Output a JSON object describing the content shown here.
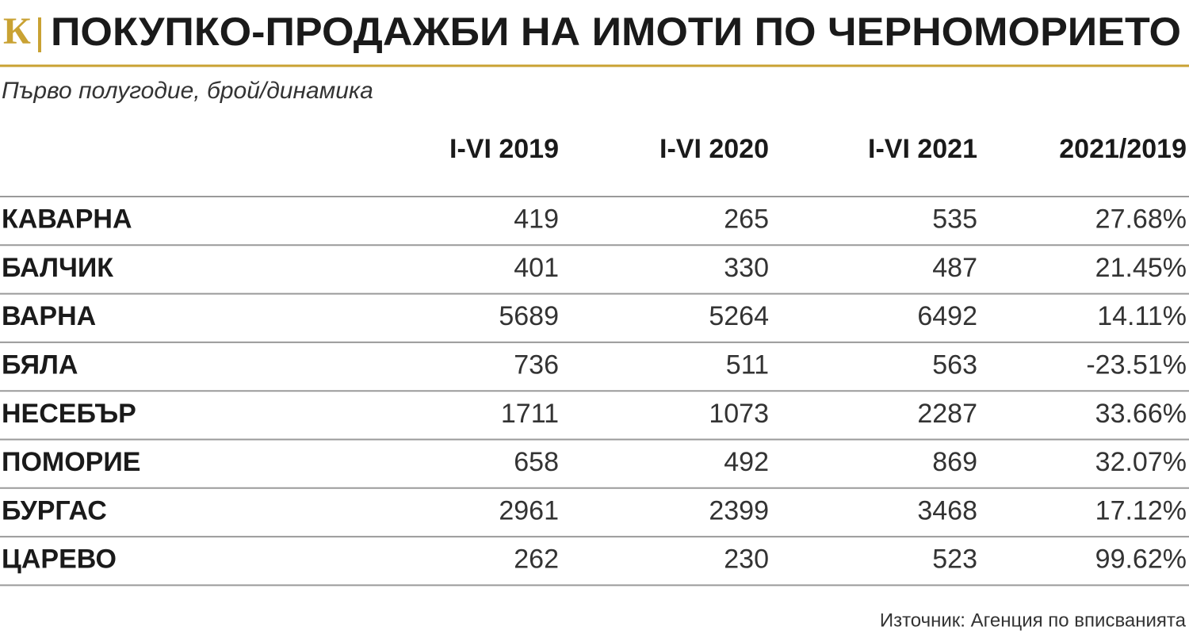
{
  "header": {
    "logo": "К",
    "title": "ПОКУПКО-ПРОДАЖБИ НА ИМОТИ ПО ЧЕРНОМОРИЕТО",
    "subtitle": "Първо полугодие, брой/динамика"
  },
  "table": {
    "columns": [
      "I-VI 2019",
      "I-VI 2020",
      "I-VI 2021",
      "2021/2019"
    ],
    "rows": [
      [
        "КАВАРНА",
        419,
        265,
        535,
        "27.68%"
      ],
      [
        "БАЛЧИК",
        401,
        330,
        487,
        "21.45%"
      ],
      [
        "ВАРНА",
        5689,
        5264,
        6492,
        "14.11%"
      ],
      [
        "БЯЛА",
        736,
        511,
        563,
        "-23.51%"
      ],
      [
        "НЕСЕБЪР",
        1711,
        1073,
        2287,
        "33.66%"
      ],
      [
        "ПОМОРИЕ",
        658,
        492,
        869,
        "32.07%"
      ],
      [
        "БУРГАС",
        2961,
        2399,
        3468,
        "17.12%"
      ],
      [
        "ЦАРЕВО",
        262,
        230,
        523,
        "99.62%"
      ]
    ]
  },
  "footer": {
    "source": "Източник: Агенция по вписванията"
  }
}
